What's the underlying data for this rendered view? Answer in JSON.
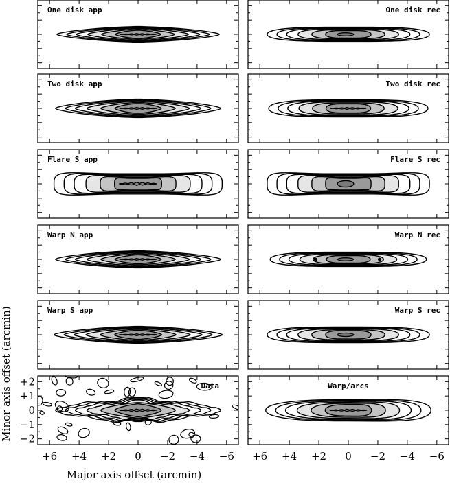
{
  "chart_data": {
    "type": "contour",
    "xlabel": "Major axis offset (arcmin)",
    "ylabel": "Minor axis offset (arcmin)",
    "xlim": [
      6.8,
      -6.8
    ],
    "ylim": [
      -2.4,
      2.4
    ],
    "x_ticks": [
      {
        "value": 6,
        "label": "+6"
      },
      {
        "value": 4,
        "label": "+4"
      },
      {
        "value": 2,
        "label": "+2"
      },
      {
        "value": 0,
        "label": "0"
      },
      {
        "value": -2,
        "label": "−2"
      },
      {
        "value": -4,
        "label": "−4"
      },
      {
        "value": -6,
        "label": "−6"
      }
    ],
    "y_ticks": [
      {
        "value": 2,
        "label": "+2"
      },
      {
        "value": 1,
        "label": "+1"
      },
      {
        "value": 0,
        "label": "0"
      },
      {
        "value": -1,
        "label": "−1"
      },
      {
        "value": -2,
        "label": "−2"
      }
    ],
    "panels": [
      {
        "label": "One disk app",
        "label_pos": "top-left",
        "a": 5.5,
        "b": 0.55,
        "shape": "lens",
        "core": "squiggle"
      },
      {
        "label": "One disk rec",
        "label_pos": "top-right",
        "a": 5.5,
        "b": 0.5,
        "shape": "box",
        "core": "blob"
      },
      {
        "label": "Two disk app",
        "label_pos": "top-left",
        "a": 5.6,
        "b": 0.65,
        "shape": "lens",
        "core": "band"
      },
      {
        "label": "Two disk rec",
        "label_pos": "top-right",
        "a": 5.4,
        "b": 0.6,
        "shape": "box",
        "core": "squiggle"
      },
      {
        "label": "Flare S app",
        "label_pos": "top-left",
        "a": 5.7,
        "b": 1.0,
        "shape": "flare",
        "core": "squiggle"
      },
      {
        "label": "Flare S rec",
        "label_pos": "top-right",
        "a": 5.5,
        "b": 1.0,
        "shape": "flare",
        "core": "blob"
      },
      {
        "label": "Warp N app",
        "label_pos": "top-left",
        "a": 5.6,
        "b": 0.6,
        "shape": "lens",
        "core": "squiggle"
      },
      {
        "label": "Warp N rec",
        "label_pos": "top-right",
        "a": 5.3,
        "b": 0.5,
        "shape": "box",
        "core": "blobdots"
      },
      {
        "label": "Warp S app",
        "label_pos": "top-left",
        "a": 5.7,
        "b": 0.6,
        "shape": "lens",
        "core": "squiggle"
      },
      {
        "label": "Warp S rec",
        "label_pos": "top-right",
        "a": 5.5,
        "b": 0.55,
        "shape": "box",
        "core": "blob"
      },
      {
        "label": "Data",
        "label_pos": "top-right",
        "a": 5.6,
        "b": 0.85,
        "shape": "data",
        "core": "squiggle"
      },
      {
        "label": "Warp/arcs",
        "label_pos": "top-center",
        "a": 5.6,
        "b": 0.75,
        "shape": "arcs",
        "core": "squiggle"
      }
    ]
  }
}
